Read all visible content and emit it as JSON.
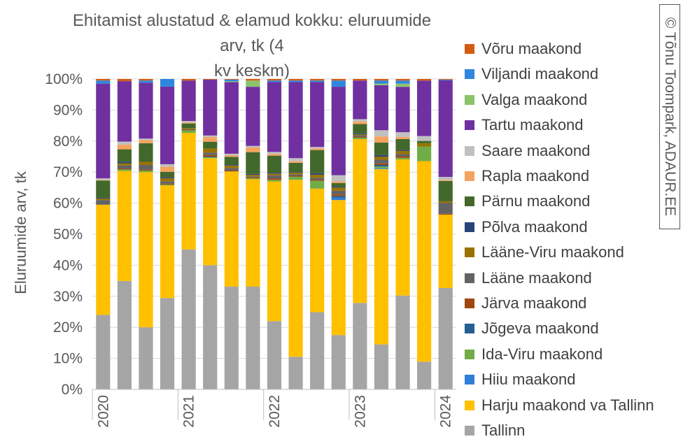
{
  "chart_data": {
    "type": "bar",
    "stacked": true,
    "percent_stacked": true,
    "title": "Ehitamist alustatud & elamud kokku: eluruumide arv, tk (4 kv keskm)",
    "title_lines": [
      "Ehitamist alustatud & elamud kokku: eluruumide arv, tk (4",
      "kv keskm)"
    ],
    "xlabel": "",
    "ylabel": "Eluruumide arv, tk",
    "ylim": [
      0,
      100
    ],
    "yticks": [
      "0%",
      "10%",
      "20%",
      "30%",
      "40%",
      "50%",
      "60%",
      "70%",
      "80%",
      "90%",
      "100%"
    ],
    "categories": [
      "2020 Q1",
      "2020 Q2",
      "2020 Q3",
      "2020 Q4",
      "2021 Q1",
      "2021 Q2",
      "2021 Q3",
      "2021 Q4",
      "2022 Q1",
      "2022 Q2",
      "2022 Q3",
      "2022 Q4",
      "2023 Q1",
      "2023 Q2",
      "2023 Q3",
      "2023 Q4",
      "2024 Q1"
    ],
    "xtick_labels": [
      {
        "index": 0,
        "label": "2020"
      },
      {
        "index": 4,
        "label": "2021"
      },
      {
        "index": 8,
        "label": "2022"
      },
      {
        "index": 12,
        "label": "2023"
      },
      {
        "index": 16,
        "label": "2024"
      }
    ],
    "series": [
      {
        "name": "Tallinn",
        "color": "#A5A5A5",
        "values": [
          24,
          35,
          20,
          30,
          45,
          40,
          33,
          33,
          22,
          10.5,
          25,
          17.5,
          28,
          14.5,
          30,
          8.5,
          32.5
        ]
      },
      {
        "name": "Harju maakond va Tallinn",
        "color": "#FFC000",
        "values": [
          35.5,
          35.5,
          50,
          37,
          37.5,
          34.5,
          37,
          34.5,
          45,
          57,
          40,
          43.5,
          53,
          56.5,
          43.5,
          61.5,
          23.5
        ]
      },
      {
        "name": "Hiiu maakond",
        "color": "#2F7ED8",
        "values": [
          0,
          0,
          0,
          0,
          0,
          0,
          0,
          0,
          0,
          0,
          0,
          0.8,
          0,
          0.3,
          0,
          0,
          0
        ]
      },
      {
        "name": "Ida-Viru maakond",
        "color": "#70AD47",
        "values": [
          0,
          0.5,
          0.5,
          0.3,
          0.8,
          0.3,
          0,
          0.3,
          0.5,
          1,
          2.5,
          0,
          0.5,
          0.5,
          0.5,
          4.5,
          0
        ]
      },
      {
        "name": "Jõgeva maakond",
        "color": "#255E91",
        "values": [
          0,
          0,
          0,
          0,
          0,
          0.2,
          0,
          0,
          0,
          0,
          0,
          0.5,
          0,
          0.5,
          0,
          0,
          0
        ]
      },
      {
        "name": "Järva maakond",
        "color": "#9E480E",
        "values": [
          0,
          0.3,
          0.3,
          0.3,
          0.2,
          0.5,
          0.3,
          0.3,
          0.5,
          0.3,
          0.3,
          0.5,
          0.3,
          0.5,
          0.5,
          0,
          0.3
        ]
      },
      {
        "name": "Lääne maakond",
        "color": "#636363",
        "values": [
          1.5,
          1,
          1.5,
          0.8,
          0.2,
          0.8,
          0.8,
          0.3,
          1,
          0.5,
          0.7,
          1.2,
          0.5,
          1.2,
          0.7,
          0,
          3.5
        ]
      },
      {
        "name": "Lääne-Viru maakond",
        "color": "#997300",
        "values": [
          0.5,
          0.7,
          1,
          1,
          0.3,
          1.3,
          0.8,
          0.5,
          0.5,
          0.5,
          1,
          1,
          0.3,
          1,
          1,
          1,
          0.5
        ]
      },
      {
        "name": "Põlva maakond",
        "color": "#264478",
        "values": [
          0.3,
          0.5,
          0,
          0.3,
          0,
          0,
          0.3,
          0.3,
          0.3,
          0.2,
          0.5,
          0.3,
          0.3,
          0.5,
          0.3,
          0,
          0
        ]
      },
      {
        "name": "Pärnu maakond",
        "color": "#43682B",
        "values": [
          5.5,
          4,
          6,
          1.8,
          1.5,
          2.2,
          2.5,
          7,
          5.5,
          3,
          7.5,
          1.2,
          3,
          4,
          3.5,
          0.7,
          6.5
        ]
      },
      {
        "name": "Rapla maakond",
        "color": "#F4A460",
        "values": [
          0.2,
          1.5,
          1,
          1.7,
          0.3,
          1.5,
          0.5,
          1.5,
          0.5,
          0.5,
          0.5,
          0.5,
          0.8,
          2,
          0.7,
          0,
          0.3
        ]
      },
      {
        "name": "Saare maakond",
        "color": "#C0C0C0",
        "values": [
          0.5,
          1,
          0.5,
          0.8,
          0.5,
          0.5,
          0.5,
          0.5,
          0.7,
          1,
          0.5,
          2,
          0.8,
          2,
          1.5,
          1.5,
          1
        ]
      },
      {
        "name": "Tartu maakond",
        "color": "#7030A0",
        "values": [
          30.5,
          19.5,
          18,
          25.5,
          13,
          18,
          23,
          19,
          22.5,
          24.5,
          21,
          28.5,
          12.5,
          14.5,
          14.5,
          17,
          31
        ]
      },
      {
        "name": "Valga maakond",
        "color": "#8BC46A",
        "values": [
          0,
          0,
          0,
          0,
          0,
          0,
          0.3,
          2,
          0,
          0,
          0,
          0,
          0,
          0.5,
          1,
          0,
          0
        ]
      },
      {
        "name": "Viljandi maakond",
        "color": "#2E86DE",
        "values": [
          1,
          0,
          0.7,
          2.5,
          0,
          0,
          0.5,
          0,
          0.5,
          0.5,
          0.5,
          2,
          0,
          1,
          1,
          0,
          0.2
        ]
      },
      {
        "name": "Võru maakond",
        "color": "#D45B13",
        "values": [
          0.5,
          0.7,
          0.5,
          0,
          0.5,
          0.2,
          0.2,
          0.5,
          0.5,
          0.5,
          0.5,
          0.5,
          0.5,
          0.5,
          0.5,
          0.5,
          0.2
        ]
      }
    ],
    "legend_order": [
      "Võru maakond",
      "Viljandi maakond",
      "Valga maakond",
      "Tartu maakond",
      "Saare maakond",
      "Rapla maakond",
      "Pärnu maakond",
      "Põlva maakond",
      "Lääne-Viru maakond",
      "Lääne maakond",
      "Järva maakond",
      "Jõgeva maakond",
      "Ida-Viru maakond",
      "Hiiu maakond",
      "Harju maakond va Tallinn",
      "Tallinn"
    ],
    "legend_position": "right",
    "grid": true
  },
  "copyright": {
    "symbol": "©",
    "text": "Tõnu Toompark, ADAUR.EE"
  }
}
